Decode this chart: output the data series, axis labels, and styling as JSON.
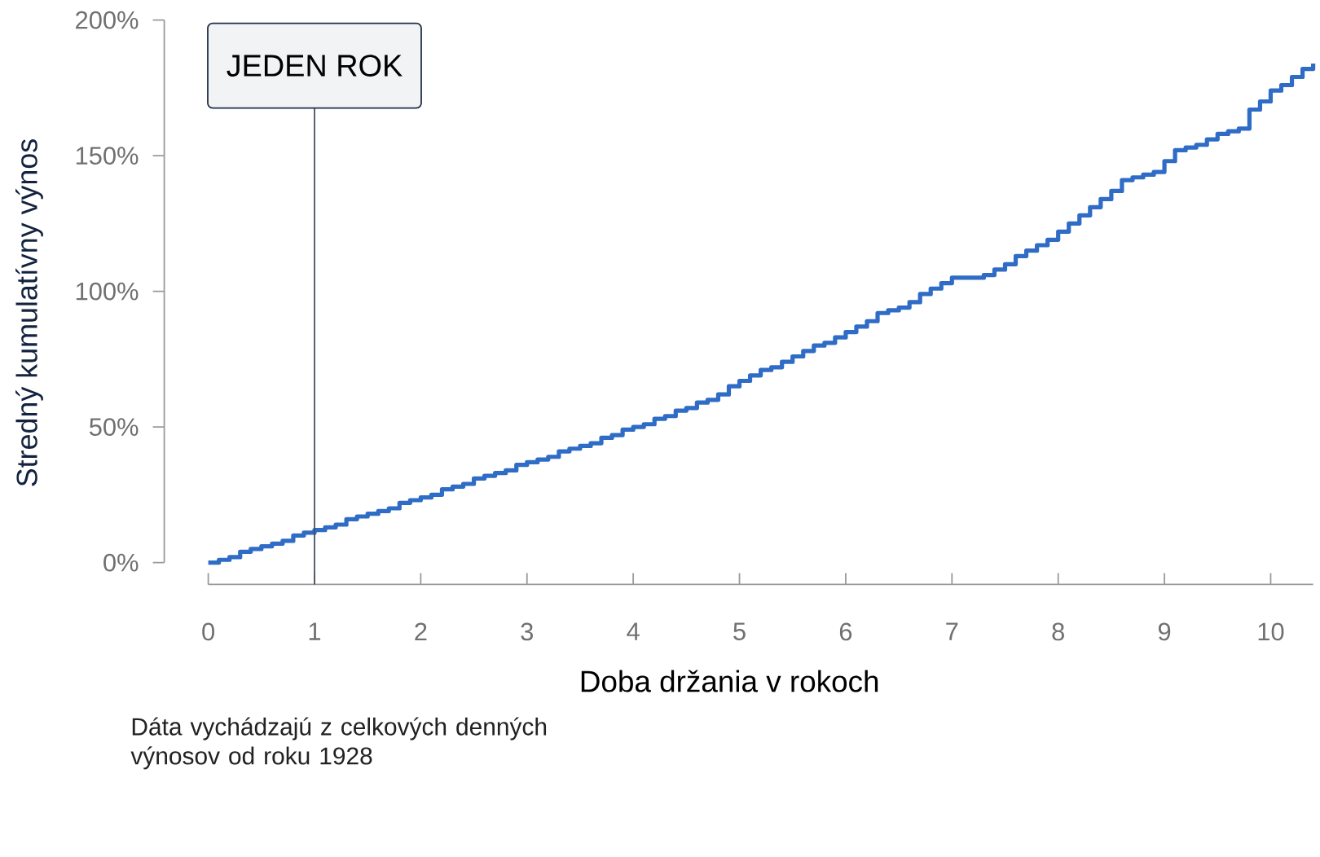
{
  "chart_data": {
    "type": "step",
    "xlabel": "Doba držania v rokoch",
    "ylabel": "Stredný kumulatívny výnos",
    "annotations": [
      "Dáta vychádzajú z celkových denných výnosov od roku 1928"
    ],
    "x": [
      0,
      0.1,
      0.2,
      0.3,
      0.4,
      0.5,
      0.6,
      0.7,
      0.8,
      0.9,
      1,
      1.1,
      1.2,
      1.3,
      1.4,
      1.5,
      1.6,
      1.7,
      1.8,
      1.9,
      2,
      2.1,
      2.2,
      2.3,
      2.4,
      2.5,
      2.6,
      2.7,
      2.8,
      2.9,
      3,
      3.1,
      3.2,
      3.3,
      3.4,
      3.5,
      3.6,
      3.7,
      3.8,
      3.9,
      4,
      4.1,
      4.2,
      4.3,
      4.4,
      4.5,
      4.6,
      4.7,
      4.8,
      4.9,
      5,
      5.1,
      5.2,
      5.3,
      5.4,
      5.5,
      5.6,
      5.7,
      5.8,
      5.9,
      6,
      6.1,
      6.2,
      6.3,
      6.4,
      6.5,
      6.6,
      6.7,
      6.8,
      6.9,
      7,
      7.1,
      7.2,
      7.3,
      7.4,
      7.5,
      7.6,
      7.7,
      7.8,
      7.9,
      8,
      8.1,
      8.2,
      8.3,
      8.4,
      8.5,
      8.6,
      8.7,
      8.8,
      8.9,
      9,
      9.1,
      9.2,
      9.3,
      9.4,
      9.5,
      9.6,
      9.7,
      9.8,
      9.9,
      10,
      10.1,
      10.2,
      10.3,
      10.4
    ],
    "series": [
      {
        "color": "#2f6cc5",
        "values": [
          0,
          1,
          2,
          4,
          5,
          6,
          7,
          8,
          10,
          11,
          12,
          13,
          14,
          16,
          17,
          18,
          19,
          20,
          22,
          23,
          24,
          25,
          27,
          28,
          29,
          31,
          32,
          33,
          34,
          36,
          37,
          38,
          39,
          41,
          42,
          43,
          44,
          46,
          47,
          49,
          50,
          51,
          53,
          54,
          56,
          57,
          59,
          60,
          62,
          65,
          67,
          69,
          71,
          72,
          74,
          76,
          78,
          80,
          81,
          83,
          85,
          87,
          89,
          92,
          93,
          94,
          96,
          99,
          101,
          103,
          105,
          105,
          105,
          106,
          108,
          110,
          113,
          115,
          117,
          119,
          122,
          125,
          128,
          131,
          134,
          137,
          141,
          142,
          143,
          144,
          148,
          152,
          153,
          154,
          156,
          158,
          159,
          160,
          167,
          170,
          174,
          176,
          179,
          182,
          184
        ]
      }
    ],
    "xlim": [
      0,
      10.4
    ],
    "ylim": [
      0,
      200
    ],
    "xticks": [
      0,
      1,
      2,
      3,
      4,
      5,
      6,
      7,
      8,
      9,
      10
    ],
    "yticks": [
      {
        "value": 0,
        "label": "0%"
      },
      {
        "value": 50,
        "label": "50%"
      },
      {
        "value": 100,
        "label": "100%"
      },
      {
        "value": 150,
        "label": "150%"
      },
      {
        "value": 200,
        "label": "200%"
      }
    ],
    "ref_lines": [
      {
        "axis": "x",
        "value": 1,
        "label": "JEDEN ROK",
        "color": "#46525f"
      }
    ],
    "line_style": "solid"
  }
}
